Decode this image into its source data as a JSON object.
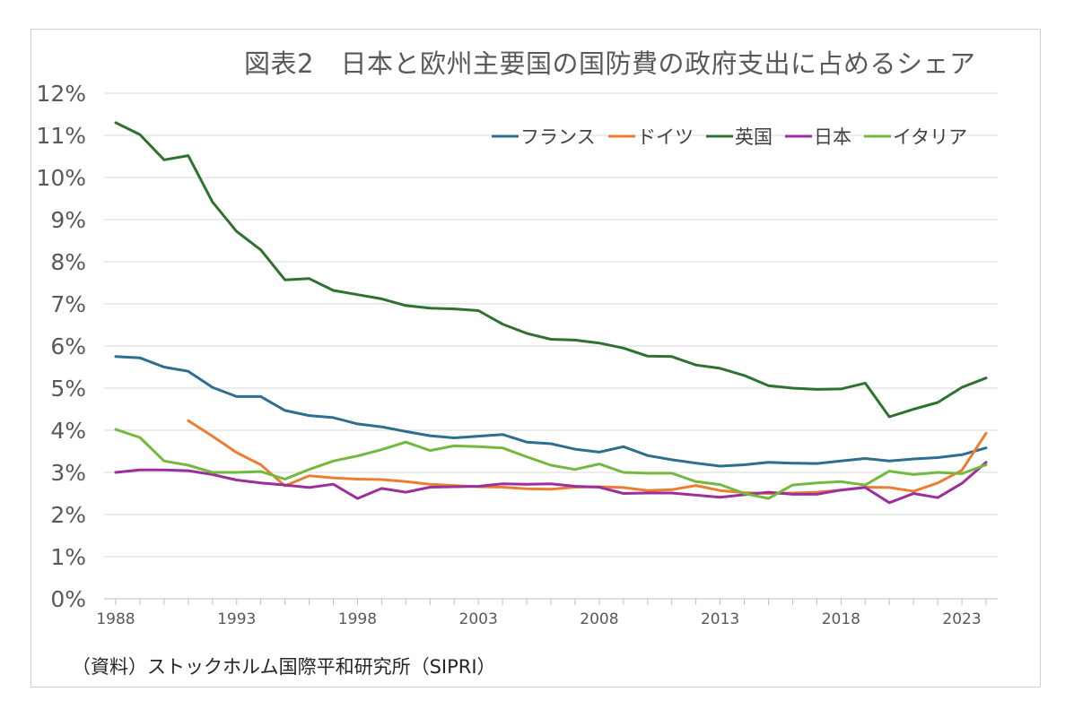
{
  "chart_data": {
    "type": "line",
    "title": "図表2　日本と欧州主要国の国防費の政府支出に占めるシェア",
    "source": "（資料）ストックホルム国際平和研究所（SIPRI）",
    "xlabel": "",
    "ylabel": "",
    "ylim": [
      0,
      12
    ],
    "xlim": [
      1988,
      2024
    ],
    "y_ticks": [
      "0%",
      "1%",
      "2%",
      "3%",
      "4%",
      "5%",
      "6%",
      "7%",
      "8%",
      "9%",
      "10%",
      "11%",
      "12%"
    ],
    "x_ticks": [
      "1988",
      "1993",
      "1998",
      "2003",
      "2008",
      "2013",
      "2018",
      "2023"
    ],
    "grid": "horizontal",
    "legend_position": "top-right",
    "x": [
      1988,
      1989,
      1990,
      1991,
      1992,
      1993,
      1994,
      1995,
      1996,
      1997,
      1998,
      1999,
      2000,
      2001,
      2002,
      2003,
      2004,
      2005,
      2006,
      2007,
      2008,
      2009,
      2010,
      2011,
      2012,
      2013,
      2014,
      2015,
      2016,
      2017,
      2018,
      2019,
      2020,
      2021,
      2022,
      2023,
      2024
    ],
    "series": [
      {
        "name": "フランス",
        "color": "#2e6e8e",
        "values": [
          5.75,
          5.72,
          5.5,
          5.4,
          5.02,
          4.8,
          4.8,
          4.47,
          4.35,
          4.3,
          4.15,
          4.08,
          3.97,
          3.87,
          3.82,
          3.86,
          3.9,
          3.72,
          3.68,
          3.55,
          3.48,
          3.61,
          3.4,
          3.3,
          3.22,
          3.15,
          3.18,
          3.24,
          3.22,
          3.21,
          3.27,
          3.33,
          3.27,
          3.32,
          3.35,
          3.42,
          3.58
        ]
      },
      {
        "name": "ドイツ",
        "color": "#ed7d31",
        "values": [
          null,
          null,
          null,
          4.23,
          3.86,
          3.47,
          3.18,
          2.68,
          2.92,
          2.87,
          2.84,
          2.83,
          2.78,
          2.72,
          2.69,
          2.66,
          2.65,
          2.61,
          2.6,
          2.65,
          2.66,
          2.64,
          2.57,
          2.59,
          2.69,
          2.57,
          2.52,
          2.5,
          2.51,
          2.53,
          2.58,
          2.65,
          2.64,
          2.55,
          2.75,
          3.05,
          3.93
        ]
      },
      {
        "name": "英国",
        "color": "#2d7230",
        "values": [
          11.3,
          11.02,
          10.42,
          10.52,
          9.42,
          8.72,
          8.28,
          7.57,
          7.6,
          7.32,
          7.22,
          7.12,
          6.96,
          6.9,
          6.88,
          6.84,
          6.52,
          6.3,
          6.16,
          6.14,
          6.07,
          5.95,
          5.76,
          5.75,
          5.55,
          5.47,
          5.3,
          5.06,
          5.0,
          4.97,
          4.98,
          5.12,
          4.32,
          4.5,
          4.66,
          5.02,
          5.24
        ]
      },
      {
        "name": "日本",
        "color": "#9b2f9b",
        "values": [
          3.0,
          3.06,
          3.06,
          3.04,
          2.95,
          2.82,
          2.75,
          2.7,
          2.64,
          2.72,
          2.38,
          2.62,
          2.53,
          2.65,
          2.66,
          2.67,
          2.73,
          2.72,
          2.73,
          2.67,
          2.65,
          2.5,
          2.51,
          2.51,
          2.46,
          2.41,
          2.47,
          2.53,
          2.48,
          2.48,
          2.58,
          2.64,
          2.28,
          2.5,
          2.4,
          2.74,
          3.24
        ]
      },
      {
        "name": "イタリア",
        "color": "#72b93e",
        "values": [
          4.02,
          3.83,
          3.27,
          3.17,
          3.0,
          3.0,
          3.02,
          2.84,
          3.07,
          3.27,
          3.39,
          3.54,
          3.72,
          3.52,
          3.63,
          3.61,
          3.58,
          3.37,
          3.17,
          3.07,
          3.2,
          3.0,
          2.98,
          2.98,
          2.78,
          2.71,
          2.5,
          2.38,
          2.7,
          2.75,
          2.78,
          2.7,
          3.03,
          2.95,
          3.0,
          2.97,
          3.18
        ]
      }
    ]
  }
}
